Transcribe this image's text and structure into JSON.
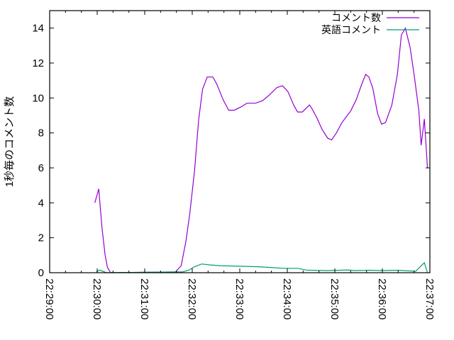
{
  "chart_data": {
    "type": "line",
    "title": "",
    "xlabel": "",
    "ylabel": "1秒毎のコメント数",
    "xlim": [
      "22:29:00",
      "22:37:00"
    ],
    "ylim": [
      0,
      15
    ],
    "x_ticks": [
      "22:29:00",
      "22:30:00",
      "22:31:00",
      "22:32:00",
      "22:33:00",
      "22:34:00",
      "22:35:00",
      "22:36:00",
      "22:37:00"
    ],
    "y_ticks": [
      0,
      2,
      4,
      6,
      8,
      10,
      12,
      14
    ],
    "grid": false,
    "legend_position": "top-right",
    "series": [
      {
        "name": "コメント数",
        "color": "#9400d3",
        "points": [
          [
            "22:29:57",
            4.0
          ],
          [
            "22:30:02",
            4.8
          ],
          [
            "22:30:06",
            2.6
          ],
          [
            "22:30:10",
            1.0
          ],
          [
            "22:30:13",
            0.3
          ],
          [
            "22:30:17",
            0
          ],
          [
            "22:31:39",
            0.05
          ],
          [
            "22:31:46",
            0.4
          ],
          [
            "22:31:52",
            1.8
          ],
          [
            "22:31:57",
            3.4
          ],
          [
            "22:32:03",
            5.9
          ],
          [
            "22:32:08",
            8.7
          ],
          [
            "22:32:13",
            10.5
          ],
          [
            "22:32:19",
            11.2
          ],
          [
            "22:32:26",
            11.2
          ],
          [
            "22:32:31",
            10.8
          ],
          [
            "22:32:39",
            9.9
          ],
          [
            "22:32:46",
            9.3
          ],
          [
            "22:32:53",
            9.3
          ],
          [
            "22:33:02",
            9.5
          ],
          [
            "22:33:09",
            9.7
          ],
          [
            "22:33:20",
            9.7
          ],
          [
            "22:33:29",
            9.85
          ],
          [
            "22:33:38",
            10.2
          ],
          [
            "22:33:47",
            10.6
          ],
          [
            "22:33:54",
            10.7
          ],
          [
            "22:34:01",
            10.35
          ],
          [
            "22:34:08",
            9.6
          ],
          [
            "22:34:13",
            9.2
          ],
          [
            "22:34:19",
            9.2
          ],
          [
            "22:34:28",
            9.6
          ],
          [
            "22:34:31",
            9.4
          ],
          [
            "22:34:37",
            8.9
          ],
          [
            "22:34:44",
            8.2
          ],
          [
            "22:34:51",
            7.7
          ],
          [
            "22:34:56",
            7.6
          ],
          [
            "22:35:02",
            8.0
          ],
          [
            "22:35:09",
            8.6
          ],
          [
            "22:35:20",
            9.25
          ],
          [
            "22:35:27",
            9.9
          ],
          [
            "22:35:34",
            10.8
          ],
          [
            "22:35:39",
            11.35
          ],
          [
            "22:35:43",
            11.2
          ],
          [
            "22:35:48",
            10.55
          ],
          [
            "22:35:54",
            9.1
          ],
          [
            "22:35:59",
            8.5
          ],
          [
            "22:36:04",
            8.6
          ],
          [
            "22:36:12",
            9.6
          ],
          [
            "22:36:19",
            11.35
          ],
          [
            "22:36:24",
            13.6
          ],
          [
            "22:36:29",
            14.0
          ],
          [
            "22:36:35",
            12.9
          ],
          [
            "22:36:40",
            11.35
          ],
          [
            "22:36:46",
            9.3
          ],
          [
            "22:36:49",
            7.3
          ],
          [
            "22:36:53",
            8.8
          ],
          [
            "22:36:57",
            6.0
          ]
        ]
      },
      {
        "name": "英語コメント",
        "color": "#009e73",
        "points": [
          [
            "22:29:59",
            0.05
          ],
          [
            "22:30:03",
            0.15
          ],
          [
            "22:30:06",
            0.1
          ],
          [
            "22:30:12",
            0
          ],
          [
            "22:31:48",
            0.05
          ],
          [
            "22:31:56",
            0.15
          ],
          [
            "22:32:03",
            0.35
          ],
          [
            "22:32:12",
            0.5
          ],
          [
            "22:32:21",
            0.45
          ],
          [
            "22:32:35",
            0.4
          ],
          [
            "22:33:02",
            0.37
          ],
          [
            "22:33:29",
            0.33
          ],
          [
            "22:33:38",
            0.3
          ],
          [
            "22:33:56",
            0.25
          ],
          [
            "22:34:13",
            0.25
          ],
          [
            "22:34:24",
            0.15
          ],
          [
            "22:34:49",
            0.12
          ],
          [
            "22:35:07",
            0.14
          ],
          [
            "22:35:16",
            0.16
          ],
          [
            "22:35:25",
            0.12
          ],
          [
            "22:35:43",
            0.14
          ],
          [
            "22:36:01",
            0.12
          ],
          [
            "22:36:19",
            0.14
          ],
          [
            "22:36:42",
            0.08
          ],
          [
            "22:36:53",
            0.57
          ],
          [
            "22:36:57",
            0
          ]
        ]
      }
    ]
  }
}
